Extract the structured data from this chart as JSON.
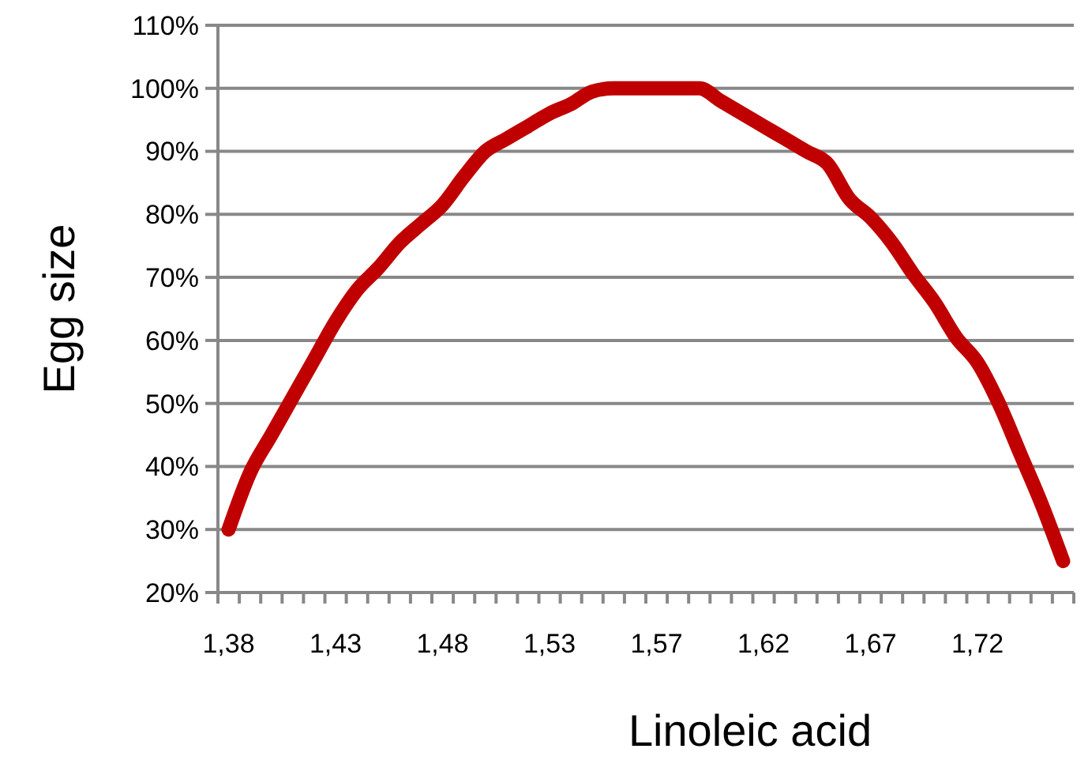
{
  "chart_data": {
    "type": "line",
    "xlabel": "Linoleic acid",
    "ylabel": "Egg size",
    "categories": [
      "1,38",
      null,
      null,
      null,
      null,
      "1,43",
      null,
      null,
      null,
      null,
      "1,48",
      null,
      null,
      null,
      null,
      "1,53",
      null,
      null,
      null,
      null,
      "1,57",
      null,
      null,
      null,
      null,
      "1,62",
      null,
      null,
      null,
      null,
      "1,67",
      null,
      null,
      null,
      null,
      "1,72",
      null,
      null,
      null,
      null
    ],
    "series": [
      {
        "color": "#c00000",
        "values": [
          30,
          39,
          45,
          51,
          57,
          63,
          68,
          71.5,
          75.5,
          78.5,
          81.5,
          86,
          90,
          92,
          94,
          96,
          97.5,
          99.5,
          100,
          100,
          100,
          100,
          100,
          98,
          96,
          94,
          92,
          90,
          88,
          82.5,
          79.5,
          75.5,
          70.5,
          66,
          60.5,
          56.5,
          50,
          42,
          34,
          25
        ]
      }
    ],
    "ylim": [
      20,
      110
    ],
    "yticks": [
      {
        "value": 20,
        "label": "20%"
      },
      {
        "value": 30,
        "label": "30%"
      },
      {
        "value": 40,
        "label": "40%"
      },
      {
        "value": 50,
        "label": "50%"
      },
      {
        "value": 60,
        "label": "60%"
      },
      {
        "value": 70,
        "label": "70%"
      },
      {
        "value": 80,
        "label": "80%"
      },
      {
        "value": 90,
        "label": "90%"
      },
      {
        "value": 100,
        "label": "100%"
      },
      {
        "value": 110,
        "label": "110%"
      }
    ],
    "grid": "y",
    "marker": "none",
    "line_style": "solid"
  }
}
